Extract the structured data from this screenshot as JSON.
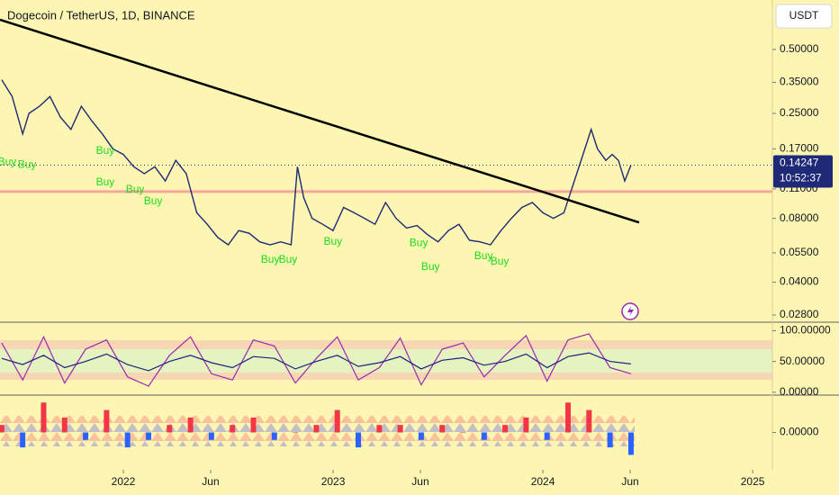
{
  "chart_data": [
    {
      "type": "line",
      "title": "Dogecoin / TetherUS, 1D, BINANCE",
      "log_scale": true,
      "currency_button": "USDT",
      "last_price": 0.14247,
      "countdown": "10:52:37",
      "tag_color": "#1e2a78",
      "xlim": [
        2021.412,
        2025.094
      ],
      "ylim": [
        0.0259,
        0.856
      ],
      "xticks": [
        {
          "value": 2022,
          "label": "2022"
        },
        {
          "value": 2022.416,
          "label": "Jun"
        },
        {
          "value": 2023,
          "label": "2023"
        },
        {
          "value": 2023.416,
          "label": "Jun"
        },
        {
          "value": 2024,
          "label": "2024"
        },
        {
          "value": 2024.416,
          "label": "Jun"
        },
        {
          "value": 2025,
          "label": "2025"
        }
      ],
      "yticks": [
        {
          "value": 0.5,
          "label": "0.50000"
        },
        {
          "value": 0.35,
          "label": "0.35000"
        },
        {
          "value": 0.25,
          "label": "0.25000"
        },
        {
          "value": 0.17,
          "label": "0.17000"
        },
        {
          "value": 0.11,
          "label": "0.11000"
        },
        {
          "value": 0.08,
          "label": "0.08000"
        },
        {
          "value": 0.055,
          "label": "0.05500"
        },
        {
          "value": 0.04,
          "label": "0.04000"
        },
        {
          "value": 0.028,
          "label": "0.02800"
        }
      ],
      "x": [
        2021.42,
        2021.47,
        2021.52,
        2021.55,
        2021.6,
        2021.65,
        2021.7,
        2021.75,
        2021.8,
        2021.85,
        2021.9,
        2021.95,
        2022.0,
        2022.05,
        2022.1,
        2022.15,
        2022.2,
        2022.25,
        2022.3,
        2022.35,
        2022.4,
        2022.45,
        2022.5,
        2022.55,
        2022.6,
        2022.65,
        2022.7,
        2022.75,
        2022.8,
        2022.83,
        2022.86,
        2022.9,
        2022.95,
        2023.0,
        2023.05,
        2023.1,
        2023.15,
        2023.2,
        2023.25,
        2023.3,
        2023.35,
        2023.4,
        2023.45,
        2023.5,
        2023.55,
        2023.6,
        2023.65,
        2023.7,
        2023.75,
        2023.8,
        2023.85,
        2023.9,
        2023.95,
        2024.0,
        2024.05,
        2024.1,
        2024.15,
        2024.2,
        2024.23,
        2024.26,
        2024.3,
        2024.33,
        2024.36,
        2024.39,
        2024.42
      ],
      "series": [
        {
          "color": "#1e2a78",
          "values": [
            0.36,
            0.3,
            0.2,
            0.25,
            0.27,
            0.3,
            0.24,
            0.21,
            0.27,
            0.23,
            0.2,
            0.17,
            0.16,
            0.14,
            0.13,
            0.14,
            0.12,
            0.15,
            0.13,
            0.085,
            0.075,
            0.065,
            0.06,
            0.07,
            0.068,
            0.062,
            0.06,
            0.062,
            0.06,
            0.14,
            0.1,
            0.08,
            0.075,
            0.07,
            0.09,
            0.085,
            0.08,
            0.075,
            0.095,
            0.08,
            0.072,
            0.074,
            0.067,
            0.062,
            0.07,
            0.075,
            0.063,
            0.062,
            0.06,
            0.07,
            0.08,
            0.09,
            0.095,
            0.085,
            0.08,
            0.085,
            0.12,
            0.17,
            0.21,
            0.17,
            0.15,
            0.16,
            0.15,
            0.12,
            0.14247
          ]
        }
      ],
      "trendline": {
        "color": "#000000",
        "x": [
          2021.412,
          2024.459
        ],
        "values": [
          0.691,
          0.0765
        ]
      },
      "support": {
        "value": 0.107,
        "color": "#f4a79d"
      },
      "annotation_color": "#22d922",
      "annotations": [
        {
          "text": "Buy",
          "x": 2021.446,
          "y": 0.147
        },
        {
          "text": "Buy",
          "x": 2021.541,
          "y": 0.143
        },
        {
          "text": "Buy",
          "x": 2021.914,
          "y": 0.166
        },
        {
          "text": "Buy",
          "x": 2021.914,
          "y": 0.118
        },
        {
          "text": "Buy",
          "x": 2022.056,
          "y": 0.109
        },
        {
          "text": "Buy",
          "x": 2022.142,
          "y": 0.096
        },
        {
          "text": "Buy",
          "x": 2022.7,
          "y": 0.051
        },
        {
          "text": "Buy",
          "x": 2022.785,
          "y": 0.051
        },
        {
          "text": "Buy",
          "x": 2022.999,
          "y": 0.062
        },
        {
          "text": "Buy",
          "x": 2023.408,
          "y": 0.061
        },
        {
          "text": "Buy",
          "x": 2023.464,
          "y": 0.047
        },
        {
          "text": "Buy",
          "x": 2023.717,
          "y": 0.053
        },
        {
          "text": "Buy",
          "x": 2023.794,
          "y": 0.05
        }
      ]
    },
    {
      "type": "line",
      "xlim": [
        2021.412,
        2025.094
      ],
      "ylim": [
        -4.6,
        113.8
      ],
      "yticks": [
        {
          "value": 100,
          "label": "100.00000"
        },
        {
          "value": 50,
          "label": "50.00000"
        },
        {
          "value": 0,
          "label": "0.00000"
        }
      ],
      "x": [
        2021.42,
        2021.52,
        2021.62,
        2021.72,
        2021.82,
        2021.92,
        2022.02,
        2022.12,
        2022.22,
        2022.32,
        2022.42,
        2022.52,
        2022.62,
        2022.72,
        2022.82,
        2022.92,
        2023.02,
        2023.12,
        2023.22,
        2023.32,
        2023.42,
        2023.52,
        2023.62,
        2023.72,
        2023.82,
        2023.92,
        2024.02,
        2024.12,
        2024.22,
        2024.32,
        2024.42
      ],
      "series": [
        {
          "color": "#9c27b0",
          "values": [
            80,
            20,
            90,
            15,
            70,
            85,
            25,
            10,
            60,
            90,
            30,
            20,
            85,
            75,
            15,
            55,
            90,
            20,
            40,
            88,
            12,
            70,
            80,
            25,
            60,
            92,
            18,
            85,
            95,
            40,
            30
          ]
        },
        {
          "color": "#1a237e",
          "values": [
            55,
            45,
            60,
            40,
            50,
            62,
            45,
            35,
            50,
            60,
            48,
            40,
            58,
            55,
            38,
            50,
            60,
            42,
            48,
            58,
            38,
            52,
            56,
            44,
            50,
            62,
            40,
            58,
            64,
            50,
            46
          ]
        }
      ]
    },
    {
      "type": "bar",
      "xlim": [
        2021.412,
        2025.094
      ],
      "ylim": [
        -0.05,
        0.05
      ],
      "yticks": [
        {
          "value": 0,
          "label": "0.00000"
        }
      ],
      "pos_color": "#f23645",
      "neg_color": "#2962ff",
      "x": [
        2021.42,
        2021.52,
        2021.62,
        2021.72,
        2021.82,
        2021.92,
        2022.02,
        2022.12,
        2022.22,
        2022.32,
        2022.42,
        2022.52,
        2022.62,
        2022.72,
        2022.82,
        2022.92,
        2023.02,
        2023.12,
        2023.22,
        2023.32,
        2023.42,
        2023.52,
        2023.62,
        2023.72,
        2023.82,
        2023.92,
        2024.02,
        2024.12,
        2024.22,
        2024.32,
        2024.42
      ],
      "values": [
        0.01,
        -0.02,
        0.04,
        0.02,
        -0.01,
        0.03,
        -0.02,
        -0.01,
        0.01,
        0.02,
        -0.01,
        0.01,
        0.02,
        -0.01,
        0.0,
        0.01,
        0.03,
        -0.02,
        0.01,
        0.01,
        -0.01,
        0.01,
        0.0,
        -0.01,
        0.01,
        0.02,
        -0.01,
        0.04,
        0.03,
        -0.02,
        -0.03
      ]
    }
  ]
}
